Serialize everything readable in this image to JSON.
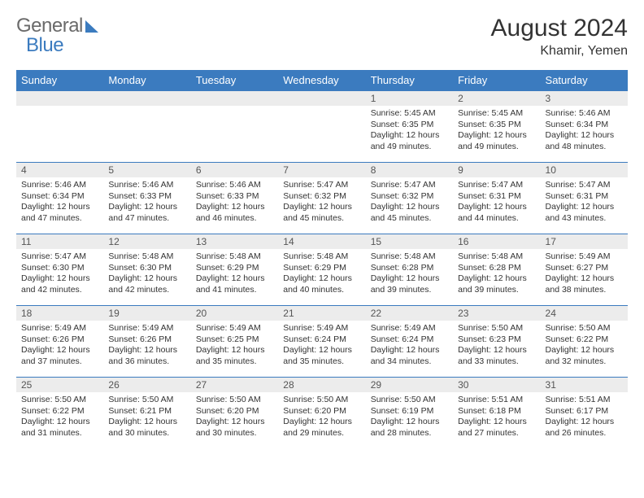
{
  "brand": {
    "part1": "General",
    "part2": "Blue"
  },
  "colors": {
    "accent": "#3b7bbf",
    "header_bg": "#3b7bbf",
    "daynum_bg": "#ececec",
    "text": "#333333"
  },
  "title": "August 2024",
  "location": "Khamir, Yemen",
  "weekdays": [
    "Sunday",
    "Monday",
    "Tuesday",
    "Wednesday",
    "Thursday",
    "Friday",
    "Saturday"
  ],
  "weeks": [
    [
      {
        "n": "",
        "sr": "",
        "ss": "",
        "dl": ""
      },
      {
        "n": "",
        "sr": "",
        "ss": "",
        "dl": ""
      },
      {
        "n": "",
        "sr": "",
        "ss": "",
        "dl": ""
      },
      {
        "n": "",
        "sr": "",
        "ss": "",
        "dl": ""
      },
      {
        "n": "1",
        "sr": "Sunrise: 5:45 AM",
        "ss": "Sunset: 6:35 PM",
        "dl": "Daylight: 12 hours and 49 minutes."
      },
      {
        "n": "2",
        "sr": "Sunrise: 5:45 AM",
        "ss": "Sunset: 6:35 PM",
        "dl": "Daylight: 12 hours and 49 minutes."
      },
      {
        "n": "3",
        "sr": "Sunrise: 5:46 AM",
        "ss": "Sunset: 6:34 PM",
        "dl": "Daylight: 12 hours and 48 minutes."
      }
    ],
    [
      {
        "n": "4",
        "sr": "Sunrise: 5:46 AM",
        "ss": "Sunset: 6:34 PM",
        "dl": "Daylight: 12 hours and 47 minutes."
      },
      {
        "n": "5",
        "sr": "Sunrise: 5:46 AM",
        "ss": "Sunset: 6:33 PM",
        "dl": "Daylight: 12 hours and 47 minutes."
      },
      {
        "n": "6",
        "sr": "Sunrise: 5:46 AM",
        "ss": "Sunset: 6:33 PM",
        "dl": "Daylight: 12 hours and 46 minutes."
      },
      {
        "n": "7",
        "sr": "Sunrise: 5:47 AM",
        "ss": "Sunset: 6:32 PM",
        "dl": "Daylight: 12 hours and 45 minutes."
      },
      {
        "n": "8",
        "sr": "Sunrise: 5:47 AM",
        "ss": "Sunset: 6:32 PM",
        "dl": "Daylight: 12 hours and 45 minutes."
      },
      {
        "n": "9",
        "sr": "Sunrise: 5:47 AM",
        "ss": "Sunset: 6:31 PM",
        "dl": "Daylight: 12 hours and 44 minutes."
      },
      {
        "n": "10",
        "sr": "Sunrise: 5:47 AM",
        "ss": "Sunset: 6:31 PM",
        "dl": "Daylight: 12 hours and 43 minutes."
      }
    ],
    [
      {
        "n": "11",
        "sr": "Sunrise: 5:47 AM",
        "ss": "Sunset: 6:30 PM",
        "dl": "Daylight: 12 hours and 42 minutes."
      },
      {
        "n": "12",
        "sr": "Sunrise: 5:48 AM",
        "ss": "Sunset: 6:30 PM",
        "dl": "Daylight: 12 hours and 42 minutes."
      },
      {
        "n": "13",
        "sr": "Sunrise: 5:48 AM",
        "ss": "Sunset: 6:29 PM",
        "dl": "Daylight: 12 hours and 41 minutes."
      },
      {
        "n": "14",
        "sr": "Sunrise: 5:48 AM",
        "ss": "Sunset: 6:29 PM",
        "dl": "Daylight: 12 hours and 40 minutes."
      },
      {
        "n": "15",
        "sr": "Sunrise: 5:48 AM",
        "ss": "Sunset: 6:28 PM",
        "dl": "Daylight: 12 hours and 39 minutes."
      },
      {
        "n": "16",
        "sr": "Sunrise: 5:48 AM",
        "ss": "Sunset: 6:28 PM",
        "dl": "Daylight: 12 hours and 39 minutes."
      },
      {
        "n": "17",
        "sr": "Sunrise: 5:49 AM",
        "ss": "Sunset: 6:27 PM",
        "dl": "Daylight: 12 hours and 38 minutes."
      }
    ],
    [
      {
        "n": "18",
        "sr": "Sunrise: 5:49 AM",
        "ss": "Sunset: 6:26 PM",
        "dl": "Daylight: 12 hours and 37 minutes."
      },
      {
        "n": "19",
        "sr": "Sunrise: 5:49 AM",
        "ss": "Sunset: 6:26 PM",
        "dl": "Daylight: 12 hours and 36 minutes."
      },
      {
        "n": "20",
        "sr": "Sunrise: 5:49 AM",
        "ss": "Sunset: 6:25 PM",
        "dl": "Daylight: 12 hours and 35 minutes."
      },
      {
        "n": "21",
        "sr": "Sunrise: 5:49 AM",
        "ss": "Sunset: 6:24 PM",
        "dl": "Daylight: 12 hours and 35 minutes."
      },
      {
        "n": "22",
        "sr": "Sunrise: 5:49 AM",
        "ss": "Sunset: 6:24 PM",
        "dl": "Daylight: 12 hours and 34 minutes."
      },
      {
        "n": "23",
        "sr": "Sunrise: 5:50 AM",
        "ss": "Sunset: 6:23 PM",
        "dl": "Daylight: 12 hours and 33 minutes."
      },
      {
        "n": "24",
        "sr": "Sunrise: 5:50 AM",
        "ss": "Sunset: 6:22 PM",
        "dl": "Daylight: 12 hours and 32 minutes."
      }
    ],
    [
      {
        "n": "25",
        "sr": "Sunrise: 5:50 AM",
        "ss": "Sunset: 6:22 PM",
        "dl": "Daylight: 12 hours and 31 minutes."
      },
      {
        "n": "26",
        "sr": "Sunrise: 5:50 AM",
        "ss": "Sunset: 6:21 PM",
        "dl": "Daylight: 12 hours and 30 minutes."
      },
      {
        "n": "27",
        "sr": "Sunrise: 5:50 AM",
        "ss": "Sunset: 6:20 PM",
        "dl": "Daylight: 12 hours and 30 minutes."
      },
      {
        "n": "28",
        "sr": "Sunrise: 5:50 AM",
        "ss": "Sunset: 6:20 PM",
        "dl": "Daylight: 12 hours and 29 minutes."
      },
      {
        "n": "29",
        "sr": "Sunrise: 5:50 AM",
        "ss": "Sunset: 6:19 PM",
        "dl": "Daylight: 12 hours and 28 minutes."
      },
      {
        "n": "30",
        "sr": "Sunrise: 5:51 AM",
        "ss": "Sunset: 6:18 PM",
        "dl": "Daylight: 12 hours and 27 minutes."
      },
      {
        "n": "31",
        "sr": "Sunrise: 5:51 AM",
        "ss": "Sunset: 6:17 PM",
        "dl": "Daylight: 12 hours and 26 minutes."
      }
    ]
  ]
}
